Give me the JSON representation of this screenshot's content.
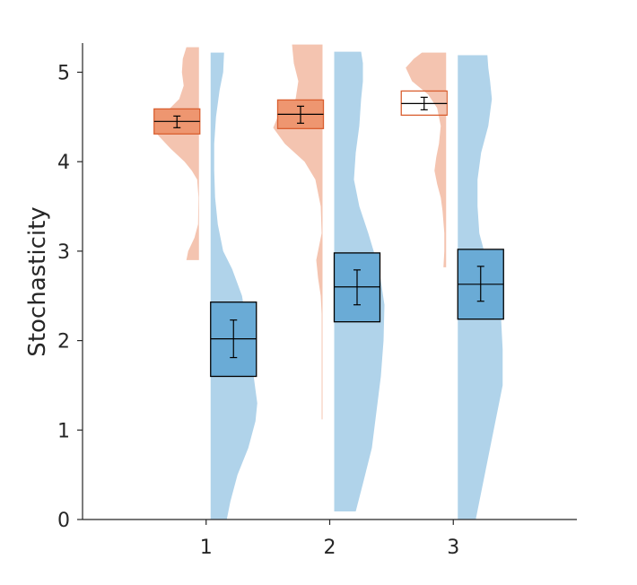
{
  "chart_data": {
    "type": "raincloud",
    "title": "",
    "xlabel": "",
    "ylabel": "Stochasticity",
    "ylim": [
      0,
      5.3
    ],
    "xlim": [
      0,
      4
    ],
    "xticks": [
      1,
      2,
      3
    ],
    "yticks": [
      0,
      1,
      2,
      3,
      4,
      5
    ],
    "grid": false,
    "legend": "none",
    "colors": {
      "orange_fill": "#f4c4b0",
      "orange_box": "#ee9670",
      "orange_edge": "#d95f30",
      "blue_fill": "#b0d3ea",
      "blue_box": "#6aabd6",
      "box_edge": "#000000"
    },
    "series": [
      {
        "groups": [
          {
            "x": 1,
            "density_range": [
              2.9,
              5.28
            ],
            "box_q1": 4.31,
            "box_q3": 4.59,
            "median": 4.45,
            "mean": 4.44,
            "ci": [
              4.38,
              4.51
            ],
            "box_style": "filled"
          },
          {
            "x": 2,
            "density_range": [
              1.12,
              5.31
            ],
            "box_q1": 4.37,
            "box_q3": 4.69,
            "median": 4.53,
            "mean": 4.52,
            "ci": [
              4.43,
              4.62
            ],
            "box_style": "filled"
          },
          {
            "x": 3,
            "density_range": [
              2.82,
              5.22
            ],
            "box_q1": 4.52,
            "box_q3": 4.79,
            "median": 4.65,
            "mean": 4.65,
            "ci": [
              4.58,
              4.72
            ],
            "box_style": "outline"
          }
        ]
      },
      {
        "groups": [
          {
            "x": 1,
            "density_range": [
              0,
              5.22
            ],
            "box_q1": 1.6,
            "box_q3": 2.43,
            "median": 2.02,
            "mean": 2.01,
            "ci": [
              1.81,
              2.23
            ],
            "box_style": "filled"
          },
          {
            "x": 2,
            "density_range": [
              0.09,
              5.23
            ],
            "box_q1": 2.21,
            "box_q3": 2.98,
            "median": 2.6,
            "mean": 2.59,
            "ci": [
              2.4,
              2.79
            ],
            "box_style": "filled"
          },
          {
            "x": 3,
            "density_range": [
              0,
              5.19
            ],
            "box_q1": 2.24,
            "box_q3": 3.02,
            "median": 2.63,
            "mean": 2.63,
            "ci": [
              2.44,
              2.83
            ],
            "box_style": "filled"
          }
        ]
      }
    ]
  }
}
